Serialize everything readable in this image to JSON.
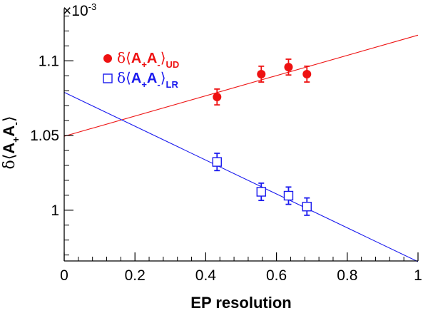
{
  "chart_data": {
    "type": "scatter",
    "title": "",
    "xlabel": "EP resolution",
    "ylabel": {
      "delta": "δ",
      "main": "A",
      "sign_plus": "+",
      "main2": "A",
      "sign_minus": "-"
    },
    "y_multiplier": {
      "base": "×10",
      "exp": "-3"
    },
    "xlim": [
      0,
      1
    ],
    "ylim": [
      0.966,
      1.135
    ],
    "x_ticks": [
      0,
      0.2,
      0.4,
      0.6,
      0.8,
      1
    ],
    "x_tick_labels": [
      "0",
      "0.2",
      "0.4",
      "0.6",
      "0.8",
      "1"
    ],
    "y_ticks": [
      1.0,
      1.05,
      1.1
    ],
    "y_tick_labels": [
      "1",
      "1.05",
      "1.1"
    ],
    "legend_placement": "top-left",
    "series": [
      {
        "name": "δ⟨A+A-⟩UD",
        "legend": {
          "delta": "δ",
          "open": "⟨",
          "a1": "A",
          "plus": "+",
          "a2": "A",
          "minus": "-",
          "close": "⟩",
          "sub": "UD"
        },
        "color": "#ee1111",
        "marker": "filled-circle",
        "x": [
          0.432,
          0.557,
          0.634,
          0.686
        ],
        "y": [
          1.0758,
          1.0911,
          1.0958,
          1.0911
        ],
        "yerr": [
          0.0053,
          0.0053,
          0.0053,
          0.0053
        ],
        "fit": {
          "x": [
            0,
            1
          ],
          "y": [
            1.0495,
            1.1172
          ]
        }
      },
      {
        "name": "δ⟨A+A-⟩LR",
        "legend": {
          "delta": "δ",
          "open": "⟨",
          "a1": "A",
          "plus": "+",
          "a2": "A",
          "minus": "-",
          "close": "⟩",
          "sub": "LR"
        },
        "color": "#1a1aee",
        "marker": "open-square",
        "x": [
          0.432,
          0.557,
          0.634,
          0.686
        ],
        "y": [
          1.0323,
          1.0123,
          1.0097,
          1.0024
        ],
        "yerr": [
          0.0058,
          0.0058,
          0.0058,
          0.0058
        ],
        "fit": {
          "x": [
            0,
            1
          ],
          "y": [
            1.0789,
            0.9655
          ]
        }
      }
    ]
  }
}
